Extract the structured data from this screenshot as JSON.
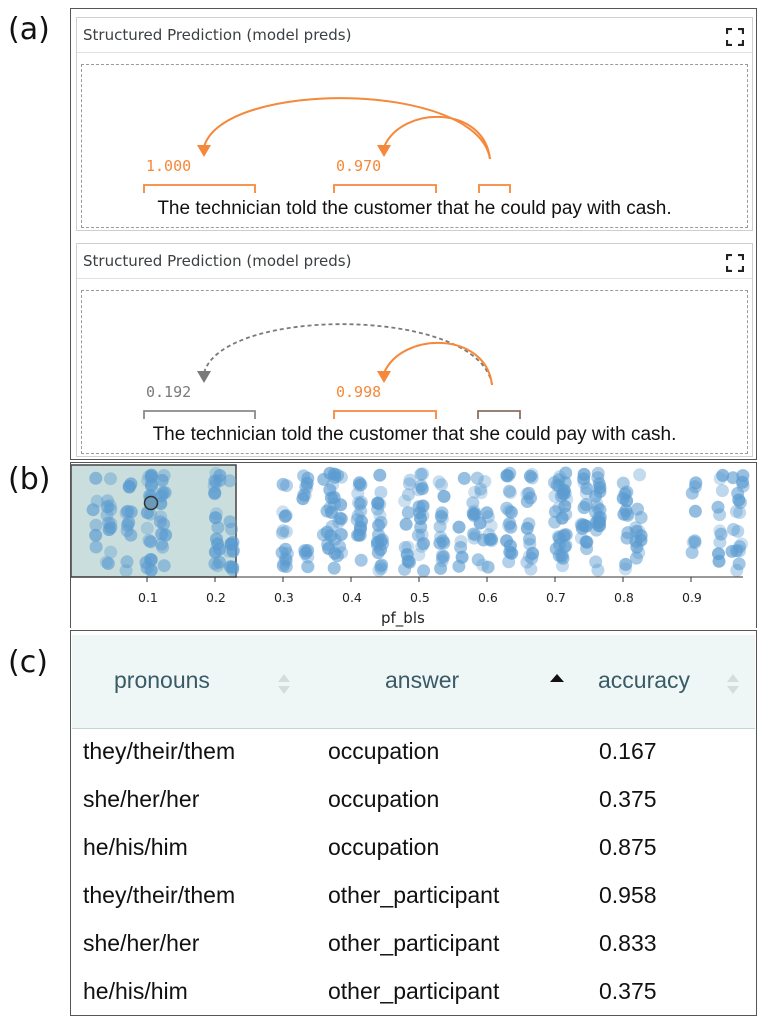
{
  "labels": {
    "a": "(a)",
    "b": "(b)",
    "c": "(c)"
  },
  "modules": [
    {
      "title": "Structured Prediction (model preds)",
      "sentence": "The technician told the customer that he could pay with cash.",
      "scores": [
        "1.000",
        "0.970"
      ]
    },
    {
      "title": "Structured Prediction (model preds)",
      "sentence": "The technician told the customer that she could pay with cash.",
      "scores": [
        "0.192",
        "0.998"
      ]
    }
  ],
  "colors": {
    "orange": "#f5883a",
    "gray": "#7a7a7a",
    "dot": "#5b9bd0",
    "selection": "#c9dedd"
  },
  "chart_data": {
    "type": "scatter",
    "xlabel": "pf_bls",
    "xticks": [
      "0.1",
      "0.2",
      "0.3",
      "0.4",
      "0.5",
      "0.6",
      "0.7",
      "0.8",
      "0.9"
    ],
    "xlim": [
      0.0,
      0.98
    ],
    "selection_range": [
      0.0,
      0.23
    ]
  },
  "table": {
    "headers": [
      "pronouns",
      "answer",
      "accuracy"
    ],
    "rows": [
      [
        "they/their/them",
        "occupation",
        "0.167"
      ],
      [
        "she/her/her",
        "occupation",
        "0.375"
      ],
      [
        "he/his/him",
        "occupation",
        "0.875"
      ],
      [
        "they/their/them",
        "other_participant",
        "0.958"
      ],
      [
        "she/her/her",
        "other_participant",
        "0.833"
      ],
      [
        "he/his/him",
        "other_participant",
        "0.375"
      ]
    ]
  }
}
